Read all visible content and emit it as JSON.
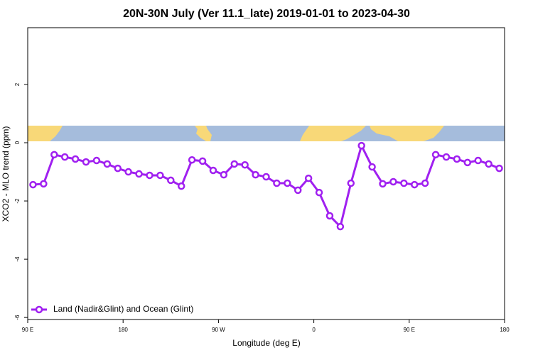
{
  "chart_data": {
    "type": "line",
    "title": "20N-30N July (Ver 11.1_late)   2019-01-01 to 2023-04-30",
    "x_label": "Longitude (deg E)",
    "y_label": "XCO2 - MLO trend (ppm)",
    "x": [
      95,
      105,
      115,
      125,
      135,
      145,
      155,
      165,
      175,
      185,
      195,
      205,
      215,
      225,
      235,
      245,
      255,
      265,
      275,
      285,
      295,
      305,
      315,
      325,
      335,
      345,
      355,
      365,
      375,
      385,
      395,
      405,
      415,
      425,
      435,
      445,
      455,
      465,
      475,
      485,
      495,
      505,
      515,
      525,
      535
    ],
    "series": [
      {
        "name": "Land (Nadir&Glint) and Ocean (Glint)",
        "color": "#a020f0",
        "values": [
          -1.44,
          -1.41,
          -0.41,
          -0.49,
          -0.56,
          -0.66,
          -0.61,
          -0.73,
          -0.88,
          -1.0,
          -1.07,
          -1.12,
          -1.12,
          -1.29,
          -1.49,
          -0.59,
          -0.63,
          -0.95,
          -1.1,
          -0.73,
          -0.76,
          -1.1,
          -1.17,
          -1.39,
          -1.39,
          -1.63,
          -1.22,
          -1.71,
          -2.51,
          -2.88,
          -1.39,
          -0.1,
          -0.83,
          -1.41,
          -1.34,
          -1.39,
          -1.44,
          -1.39,
          -0.41,
          -0.49,
          -0.56,
          -0.68,
          -0.61,
          -0.73,
          -0.88
        ]
      }
    ],
    "xlim": [
      90,
      540
    ],
    "xticks": [
      {
        "value": 90,
        "label": "90 E"
      },
      180,
      {
        "value": 270,
        "label": "90 W"
      },
      {
        "value": 360,
        "label": "0"
      },
      {
        "value": 450,
        "label": "90 E"
      },
      {
        "value": 540,
        "label": "180"
      }
    ],
    "ylim": [
      -6.07,
      3.95
    ],
    "yticks": [
      -6,
      -4,
      -2,
      0,
      2
    ],
    "legend": "bottomleft"
  }
}
